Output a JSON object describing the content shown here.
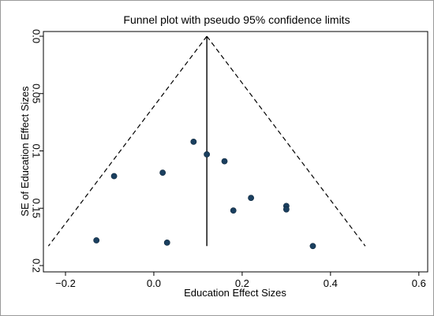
{
  "chart_data": {
    "type": "scatter",
    "title": "Funnel plot with pseudo 95% confidence limits",
    "xlabel": "Education Effect Sizes",
    "ylabel": "SE of Education Effect Sizes",
    "xlim": [
      -0.25,
      0.62
    ],
    "ylim": [
      0.0,
      0.2
    ],
    "y_reversed": true,
    "grid": false,
    "legend": "none",
    "xticks": [
      -0.2,
      0.0,
      0.2,
      0.4,
      0.6
    ],
    "xtick_labels": [
      "−0.2",
      "0.0",
      "0.2",
      "0.4",
      "0.6"
    ],
    "yticks": [
      0.0,
      0.05,
      0.1,
      0.15,
      0.2
    ],
    "ytick_labels": [
      "0.0",
      "0.05",
      "0.1",
      "0.15",
      "0.2"
    ],
    "pooled_effect": 0.12,
    "se_max": 0.183,
    "ci_multiplier": 1.96,
    "points": [
      {
        "x": 0.09,
        "y": 0.092
      },
      {
        "x": 0.12,
        "y": 0.103
      },
      {
        "x": 0.16,
        "y": 0.109
      },
      {
        "x": -0.09,
        "y": 0.122
      },
      {
        "x": 0.02,
        "y": 0.119
      },
      {
        "x": 0.22,
        "y": 0.141
      },
      {
        "x": 0.3,
        "y": 0.148
      },
      {
        "x": 0.3,
        "y": 0.151
      },
      {
        "x": 0.18,
        "y": 0.152
      },
      {
        "x": -0.13,
        "y": 0.178
      },
      {
        "x": 0.03,
        "y": 0.18
      },
      {
        "x": 0.36,
        "y": 0.183
      }
    ],
    "colors": {
      "marker": "#1a3f5f",
      "lines": "#000000",
      "frame": "#000000",
      "background": "#ffffff"
    }
  }
}
